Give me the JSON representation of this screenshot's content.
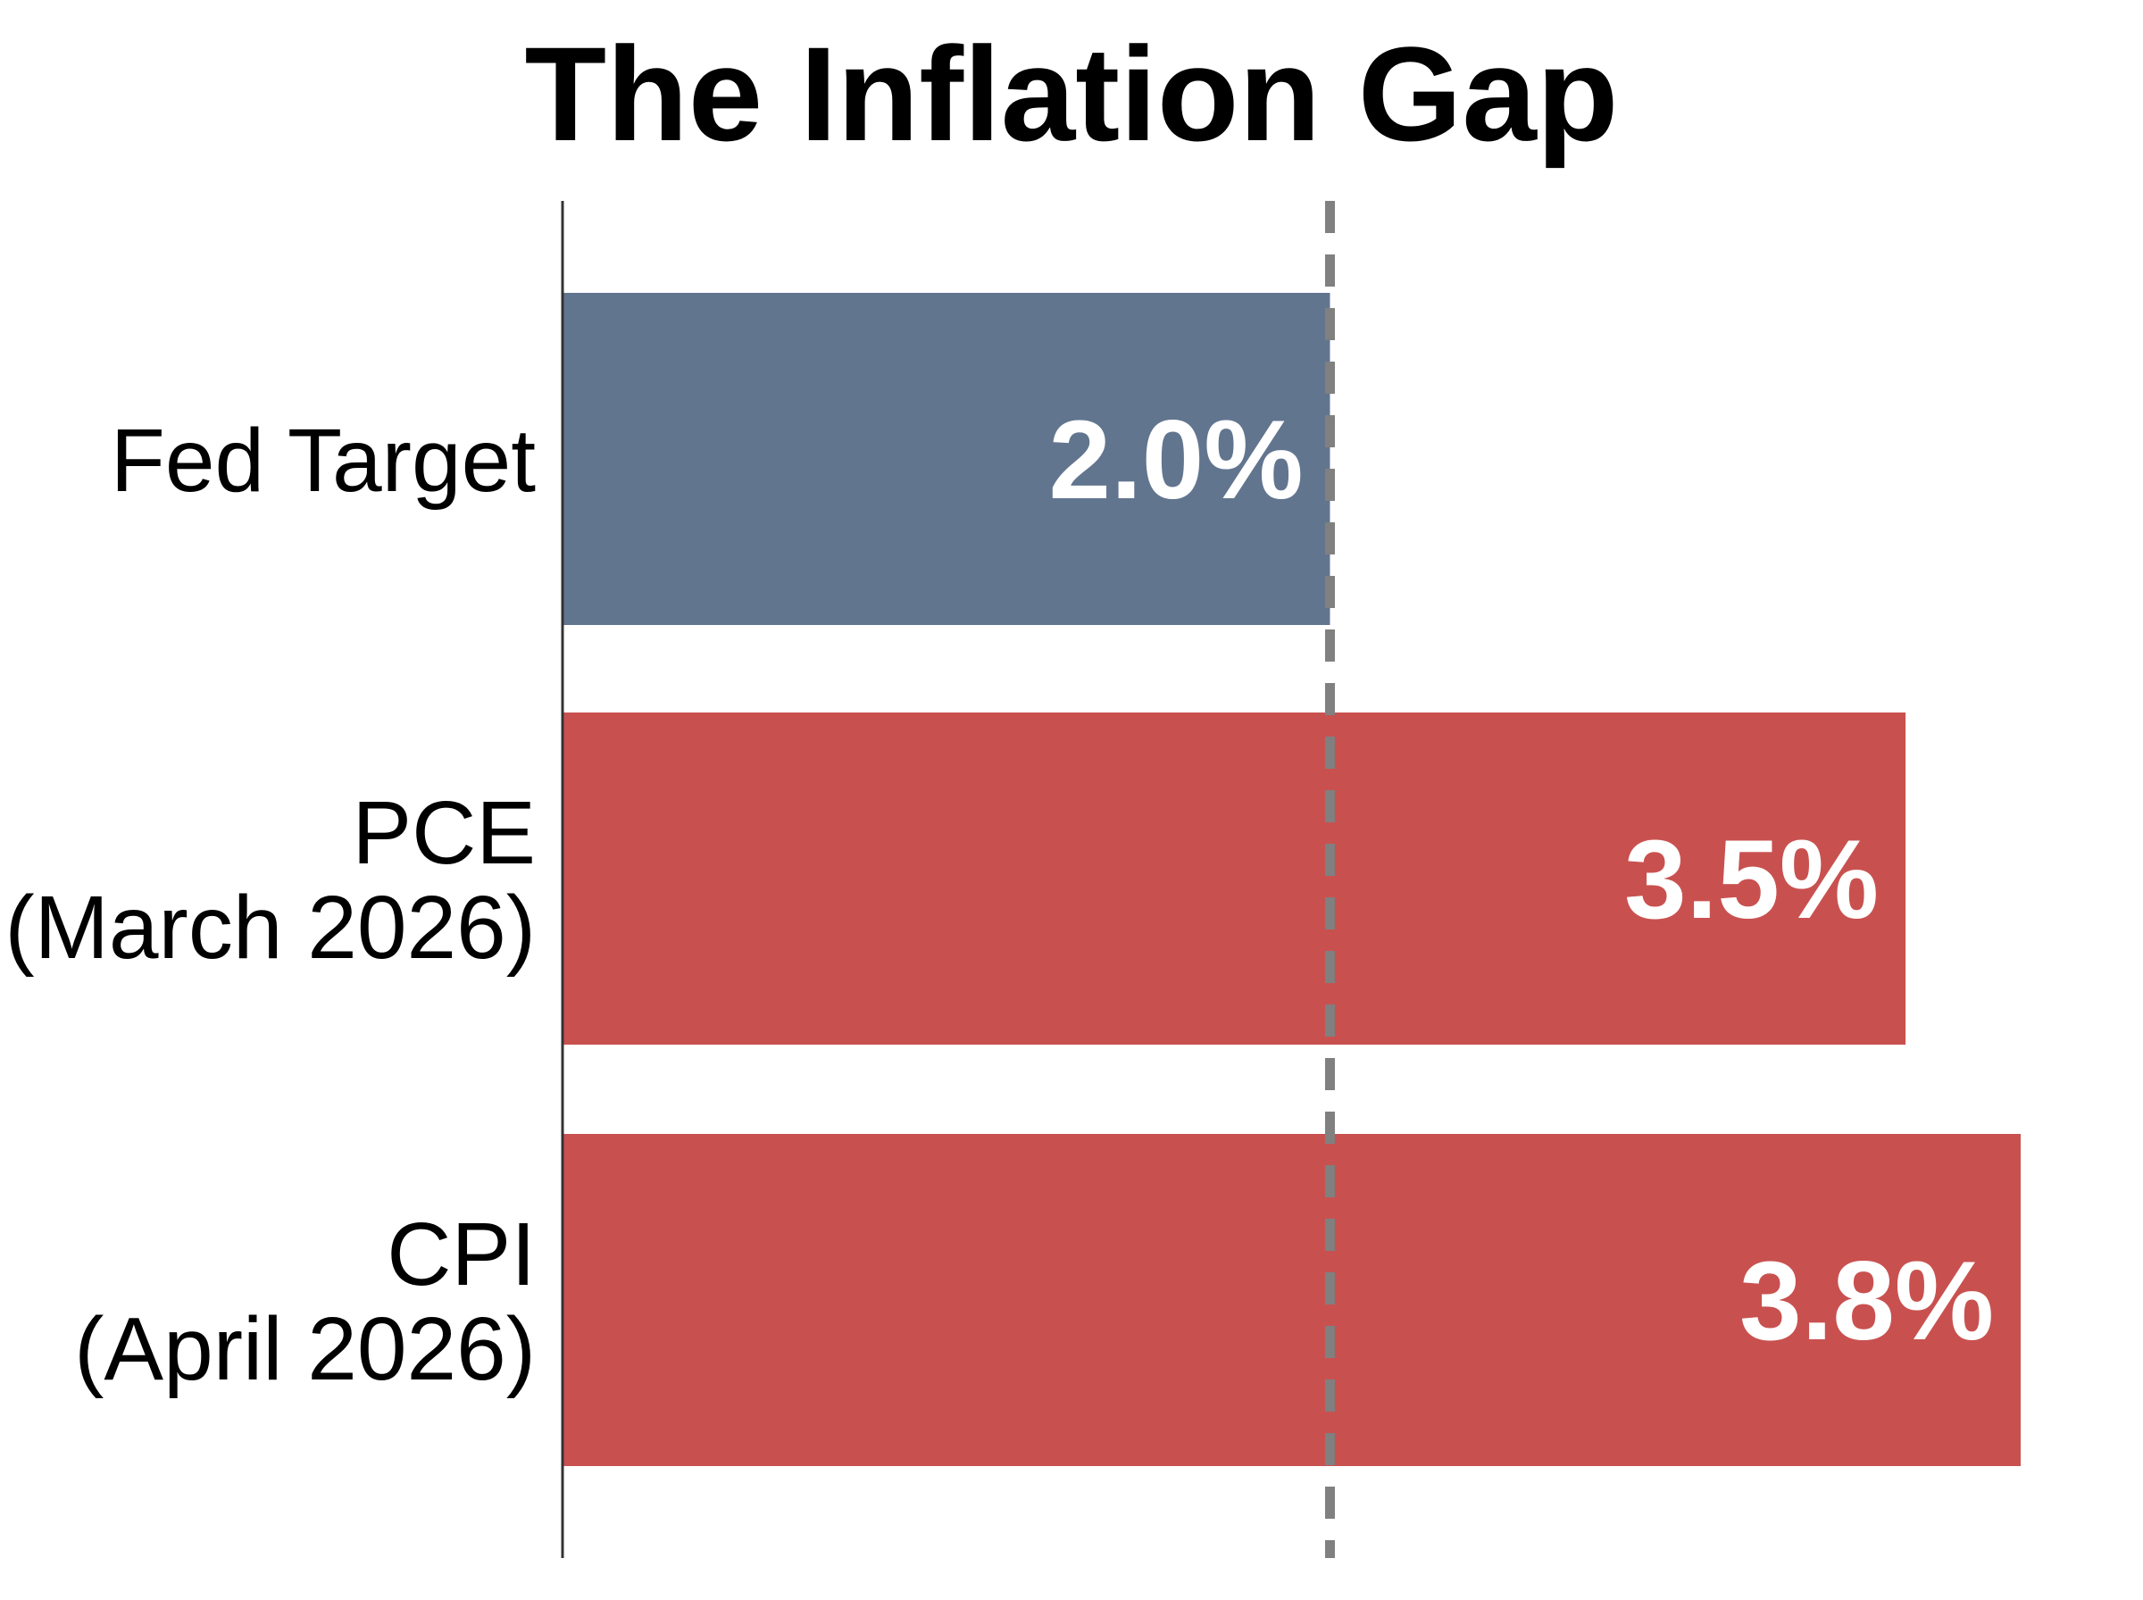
{
  "chart_data": {
    "type": "bar",
    "orientation": "horizontal",
    "title": "The Inflation Gap",
    "categories": [
      [
        "Fed Target"
      ],
      [
        "PCE",
        "(March 2026)"
      ],
      [
        "CPI",
        "(April 2026)"
      ]
    ],
    "values": [
      2.0,
      3.5,
      3.8
    ],
    "value_labels": [
      "2.0%",
      "3.5%",
      "3.8%"
    ],
    "bar_colors": [
      "#62758f",
      "#c8514f",
      "#c8514f"
    ],
    "reference_line": {
      "value": 2.0,
      "style": "dashed",
      "color": "#808080"
    },
    "xlim": [
      0,
      3.8
    ],
    "grid": false,
    "legend": "none"
  }
}
